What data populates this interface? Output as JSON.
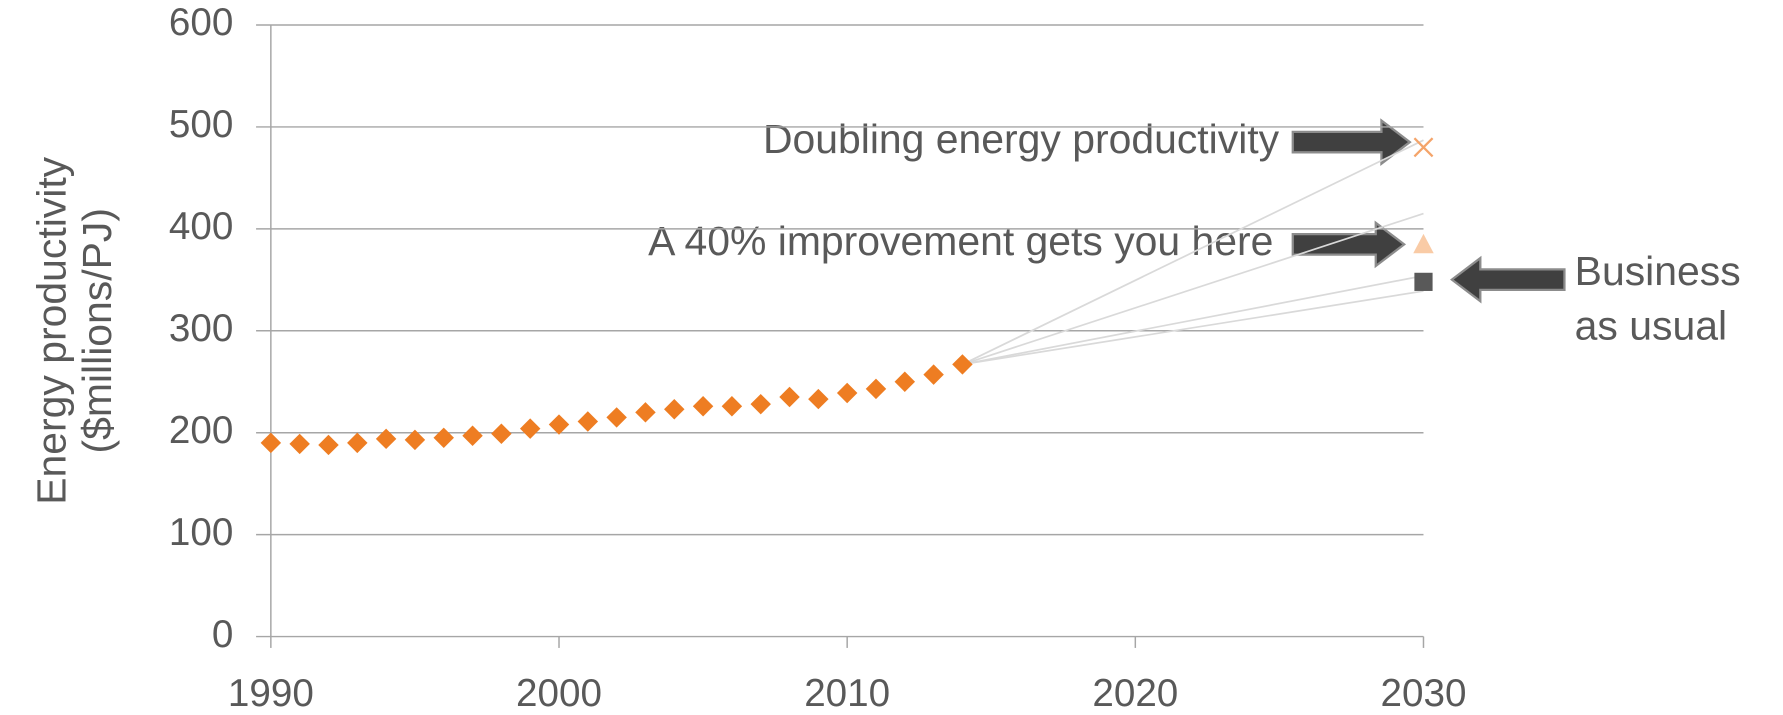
{
  "chart_data": {
    "type": "scatter",
    "y_label": [
      "Energy productivity",
      "($millions/PJ)"
    ],
    "xlim": [
      1990,
      2030
    ],
    "xticks": [
      1990,
      2000,
      2010,
      2020,
      2030
    ],
    "ylim": [
      0,
      600
    ],
    "yticks": [
      0,
      100,
      200,
      300,
      400,
      500,
      600
    ],
    "grid": true,
    "series": [
      {
        "marker": "diamond",
        "color": "#ee7d22",
        "x": [
          1990,
          1991,
          1992,
          1993,
          1994,
          1995,
          1996,
          1997,
          1998,
          1999,
          2000,
          2001,
          2002,
          2003,
          2004,
          2005,
          2006,
          2007,
          2008,
          2009,
          2010,
          2011,
          2012,
          2013,
          2014
        ],
        "values": [
          190,
          189,
          188,
          190,
          194,
          193,
          195,
          197,
          199,
          204,
          208,
          211,
          215,
          220,
          223,
          226,
          226,
          228,
          235,
          233,
          239,
          243,
          250,
          257,
          267
        ]
      },
      {
        "marker": "x",
        "color": "#f4a46a",
        "x": [
          2030
        ],
        "values": [
          480
        ]
      },
      {
        "marker": "triangle",
        "color": "#f9cba6",
        "x": [
          2030
        ],
        "values": [
          385
        ]
      },
      {
        "marker": "square",
        "color": "#595959",
        "x": [
          2030
        ],
        "values": [
          348
        ]
      }
    ],
    "trend_lines": [
      {
        "color": "#d9d9d9",
        "x": [
          2014,
          2030
        ],
        "values": [
          267,
          487
        ]
      },
      {
        "color": "#d9d9d9",
        "x": [
          2014,
          2030
        ],
        "values": [
          267,
          415
        ]
      },
      {
        "color": "#d9d9d9",
        "x": [
          2014,
          2030
        ],
        "values": [
          267,
          354
        ]
      },
      {
        "color": "#d9d9d9",
        "x": [
          2014,
          2030
        ],
        "values": [
          267,
          339
        ]
      }
    ],
    "annotations": [
      {
        "text": [
          "Doubling energy productivity"
        ]
      },
      {
        "text": [
          "A 40% improvement gets you here"
        ]
      },
      {
        "text": [
          "Business",
          "as usual"
        ]
      }
    ]
  }
}
